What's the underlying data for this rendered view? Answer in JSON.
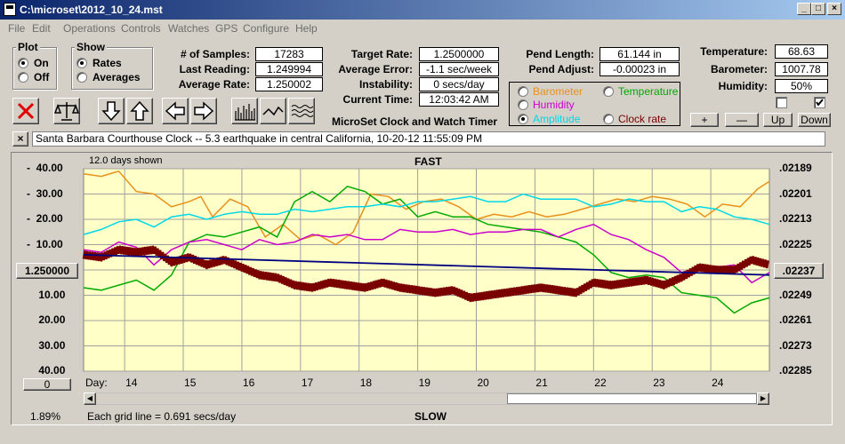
{
  "window": {
    "title": "C:\\microset\\2012_10_24.mst"
  },
  "menu": [
    "File",
    "Edit",
    "Operations",
    "Controls",
    "Watches",
    "GPS",
    "Configure",
    "Help"
  ],
  "plot": {
    "title": "Plot",
    "on": "On",
    "off": "Off"
  },
  "show": {
    "title": "Show",
    "rates": "Rates",
    "averages": "Averages"
  },
  "stats": {
    "samples_label": "# of Samples:",
    "samples": "17283",
    "last_label": "Last Reading:",
    "last": "1.249994",
    "avg_label": "Average Rate:",
    "avg": "1.250002"
  },
  "target": {
    "rate_label": "Target Rate:",
    "rate": "1.2500000",
    "err_label": "Average Error:",
    "err": "-1.1 sec/week",
    "inst_label": "Instability:",
    "inst": "0 secs/day",
    "time_label": "Current Time:",
    "time": "12:03:42 AM"
  },
  "pend": {
    "len_label": "Pend Length:",
    "len": "61.144 in",
    "adj_label": "Pend Adjust:",
    "adj": "-0.00023 in"
  },
  "env": {
    "temp_label": "Temperature:",
    "temp": "68.63",
    "baro_label": "Barometer:",
    "baro": "1007.78",
    "hum_label": "Humidity:",
    "hum": "50%"
  },
  "series_select": {
    "barometer": "Barometer",
    "temperature": "Temperature",
    "humidity": "Humidity",
    "amplitude": "Amplitude",
    "clockrate": "Clock rate"
  },
  "buttons": {
    "plus": "+",
    "minus": "—",
    "up": "Up",
    "down": "Down",
    "left_val": "1.250000",
    "right_val": ".02237",
    "zero": "0",
    "close": "×"
  },
  "subtitle": "MicroSet Clock and Watch Timer",
  "note": "Santa Barbara Courthouse Clock  --  5.3 earthquake in central California, 10-20-12 11:55:09 PM",
  "chart_header": {
    "days_shown": "12.0 days shown",
    "fast": "FAST",
    "slow": "SLOW",
    "day_label": "Day:",
    "grid_note": "Each grid line = 0.691 secs/day",
    "pct": "1.89%"
  },
  "colors": {
    "barometer": "#e8901c",
    "temperature": "#00aa00",
    "humidity": "#cc00cc",
    "amplitude": "#00d8e8",
    "rate": "#7a0000",
    "avg": "#000080",
    "plotbg": "#ffffc8"
  },
  "chart_data": {
    "type": "line",
    "x_ticks": [
      14,
      15,
      16,
      17,
      18,
      19,
      20,
      21,
      22,
      23,
      24
    ],
    "xlim": [
      13.3,
      25.0
    ],
    "left_ticks": [
      "40.00",
      "30.00",
      "20.00",
      "10.00",
      "",
      "10.00",
      "20.00",
      "30.00",
      "40.00"
    ],
    "left_tick_prefix": [
      "-",
      "-",
      "-",
      "-",
      "",
      "",
      "",
      "",
      ""
    ],
    "right_ticks": [
      ".02189",
      ".02201",
      ".02213",
      ".02225",
      ".02237",
      ".02249",
      ".02261",
      ".02273",
      ".02285"
    ],
    "ylim": [
      -40,
      40
    ],
    "series": [
      {
        "key": "barometer",
        "x": [
          13.3,
          13.6,
          13.9,
          14.2,
          14.5,
          14.8,
          15.1,
          15.3,
          15.5,
          15.8,
          16.1,
          16.4,
          16.7,
          17.0,
          17.3,
          17.6,
          17.9,
          18.2,
          18.5,
          18.8,
          19.1,
          19.4,
          19.7,
          20.0,
          20.3,
          20.6,
          20.9,
          21.2,
          21.5,
          21.8,
          22.1,
          22.4,
          22.7,
          23.0,
          23.3,
          23.6,
          23.9,
          24.2,
          24.5,
          24.8,
          25.0
        ],
        "values": [
          38,
          37,
          39,
          31,
          30,
          25,
          27,
          29,
          21,
          28,
          25,
          13,
          18,
          12,
          14,
          10,
          15,
          30,
          29,
          24,
          27,
          28,
          25,
          20,
          22,
          21,
          23,
          21,
          22,
          24,
          26,
          28,
          27,
          29,
          28,
          26,
          21,
          26,
          25,
          32,
          35
        ]
      },
      {
        "key": "temperature",
        "x": [
          13.3,
          13.6,
          13.9,
          14.2,
          14.5,
          14.8,
          15.1,
          15.4,
          15.7,
          16.0,
          16.3,
          16.6,
          16.9,
          17.2,
          17.5,
          17.8,
          18.1,
          18.4,
          18.7,
          19.0,
          19.3,
          19.6,
          19.9,
          20.2,
          20.5,
          20.8,
          21.1,
          21.4,
          21.7,
          22.0,
          22.3,
          22.6,
          22.9,
          23.2,
          23.5,
          23.8,
          24.1,
          24.4,
          24.7,
          25.0
        ],
        "values": [
          -7,
          -8,
          -6,
          -4,
          -8,
          -2,
          11,
          14,
          13,
          15,
          17,
          13,
          27,
          31,
          27,
          33,
          31,
          26,
          28,
          21,
          23,
          21,
          21,
          18,
          17,
          16,
          15,
          13,
          11,
          6,
          -1,
          -3,
          -2,
          -3,
          -9,
          -10,
          -11,
          -17,
          -13,
          -11
        ]
      },
      {
        "key": "humidity",
        "x": [
          13.3,
          13.6,
          13.9,
          14.2,
          14.5,
          14.8,
          15.1,
          15.4,
          15.7,
          16.0,
          16.3,
          16.6,
          16.9,
          17.2,
          17.5,
          17.8,
          18.1,
          18.4,
          18.7,
          19.0,
          19.3,
          19.6,
          19.9,
          20.2,
          20.5,
          20.8,
          21.1,
          21.4,
          21.7,
          22.0,
          22.3,
          22.6,
          22.9,
          23.2,
          23.5,
          23.8,
          24.1,
          24.4,
          24.7,
          25.0
        ],
        "values": [
          8,
          7,
          11,
          9,
          2,
          8,
          11,
          12,
          10,
          8,
          12,
          10,
          11,
          14,
          13,
          14,
          12,
          12,
          16,
          15,
          15,
          16,
          14,
          15,
          15,
          16,
          16,
          13,
          16,
          18,
          14,
          12,
          8,
          5,
          -1,
          1,
          1,
          2,
          -5,
          -1
        ]
      },
      {
        "key": "amplitude",
        "x": [
          13.3,
          13.6,
          13.9,
          14.2,
          14.5,
          14.8,
          15.1,
          15.4,
          15.7,
          16.0,
          16.3,
          16.6,
          16.9,
          17.2,
          17.5,
          17.8,
          18.1,
          18.4,
          18.7,
          19.0,
          19.3,
          19.6,
          19.9,
          20.2,
          20.5,
          20.8,
          21.1,
          21.4,
          21.7,
          22.0,
          22.3,
          22.6,
          22.9,
          23.2,
          23.5,
          23.8,
          24.1,
          24.4,
          24.7,
          25.0
        ],
        "values": [
          14,
          16,
          19,
          20,
          17,
          21,
          22,
          20,
          22,
          23,
          22,
          22,
          24,
          23,
          24,
          25,
          25,
          26,
          25,
          27,
          27,
          28,
          29,
          27,
          27,
          30,
          28,
          28,
          28,
          25,
          26,
          28,
          27,
          27,
          23,
          25,
          24,
          21,
          20,
          18
        ]
      },
      {
        "key": "rate",
        "x": [
          13.3,
          13.6,
          13.9,
          14.2,
          14.5,
          14.8,
          15.1,
          15.4,
          15.7,
          16.0,
          16.3,
          16.6,
          16.9,
          17.2,
          17.5,
          17.8,
          18.1,
          18.4,
          18.7,
          19.0,
          19.3,
          19.6,
          19.9,
          20.2,
          20.5,
          20.8,
          21.1,
          21.4,
          21.7,
          22.0,
          22.3,
          22.6,
          22.9,
          23.2,
          23.5,
          23.8,
          24.1,
          24.4,
          24.7,
          25.0
        ],
        "values": [
          6,
          5,
          8,
          7,
          8,
          3,
          5,
          2,
          4,
          1,
          -2,
          -3,
          -6,
          -7,
          -5,
          -6,
          -7,
          -5,
          -7,
          -8,
          -9,
          -8,
          -11,
          -10,
          -9,
          -8,
          -7,
          -8,
          -9,
          -5,
          -6,
          -5,
          -4,
          -6,
          -3,
          1,
          0,
          0,
          4,
          2
        ]
      },
      {
        "key": "avg",
        "x": [
          13.3,
          25.0
        ],
        "values": [
          6,
          -2
        ]
      }
    ]
  }
}
